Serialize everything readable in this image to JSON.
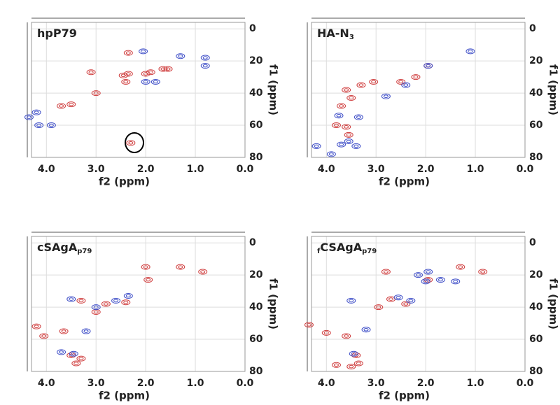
{
  "chart_data": [
    {
      "type": "scatter",
      "title": "hpP79",
      "x_label": "f2 (ppm)",
      "y_label": "f1 (ppm)",
      "xlim": [
        4.3,
        0
      ],
      "ylim": [
        80,
        -4
      ],
      "xticks": [
        {
          "value": 4,
          "label": "4.0"
        },
        {
          "value": 3,
          "label": "3.0"
        },
        {
          "value": 2,
          "label": "2.0"
        },
        {
          "value": 1,
          "label": "1.0"
        },
        {
          "value": 0,
          "label": "0.0"
        }
      ],
      "yticks": [
        0,
        20,
        40,
        60,
        80
      ],
      "grid": true,
      "series": [
        {
          "color": "#d04040",
          "x": [
            2.35,
            3.1,
            2.35,
            2.45,
            2.4,
            2.0,
            1.9,
            1.65,
            1.55,
            3.0,
            3.5,
            3.7,
            2.3
          ],
          "values": [
            15,
            27,
            28,
            29,
            33,
            28,
            27,
            25,
            25,
            40,
            47,
            48,
            71
          ]
        },
        {
          "color": "#4050c8",
          "x": [
            2.05,
            1.3,
            0.8,
            0.8,
            2.0,
            1.8,
            4.2,
            4.35,
            4.15,
            3.9
          ],
          "values": [
            14,
            17,
            18,
            23,
            33,
            33,
            52,
            55,
            60,
            60
          ]
        }
      ]
    },
    {
      "type": "scatter",
      "title": "HA-N",
      "title_sub": "3",
      "x_label": "f2 (ppm)",
      "y_label": "f1 (ppm)",
      "xlim": [
        4.3,
        0
      ],
      "ylim": [
        80,
        -4
      ],
      "xticks": [
        {
          "value": 4,
          "label": "4.0"
        },
        {
          "value": 3,
          "label": "3.0"
        },
        {
          "value": 2,
          "label": "2.0"
        },
        {
          "value": 1,
          "label": "1.0"
        },
        {
          "value": 0,
          "label": "0.0"
        }
      ],
      "yticks": [
        0,
        20,
        40,
        60,
        80
      ],
      "grid": true,
      "series": [
        {
          "color": "#d04040",
          "x": [
            1.95,
            2.2,
            2.5,
            3.05,
            3.3,
            3.6,
            3.5,
            3.7,
            3.6,
            3.55,
            3.8
          ],
          "values": [
            23,
            30,
            33,
            33,
            35,
            38,
            43,
            48,
            61,
            66,
            60
          ]
        },
        {
          "color": "#4050c8",
          "x": [
            1.1,
            1.95,
            2.8,
            2.4,
            3.75,
            3.35,
            3.55,
            3.7,
            3.4,
            3.9,
            4.2
          ],
          "values": [
            14,
            23,
            42,
            35,
            54,
            55,
            70,
            72,
            73,
            78,
            73
          ]
        }
      ]
    },
    {
      "type": "scatter",
      "title": "cSAgA",
      "title_sub": "p79",
      "x_label": "f2 (ppm)",
      "y_label": "f1 (ppm)",
      "xlim": [
        4.3,
        0
      ],
      "ylim": [
        80,
        -4
      ],
      "xticks": [
        {
          "value": 4,
          "label": "4.0"
        },
        {
          "value": 3,
          "label": "3.0"
        },
        {
          "value": 2,
          "label": "2.0"
        },
        {
          "value": 1,
          "label": "1.0"
        },
        {
          "value": 0,
          "label": "0.0"
        }
      ],
      "yticks": [
        0,
        20,
        40,
        60,
        80
      ],
      "grid": true,
      "series": [
        {
          "color": "#d04040",
          "x": [
            2.0,
            1.3,
            0.85,
            1.95,
            2.4,
            2.8,
            3.0,
            3.3,
            4.2,
            4.05,
            3.65,
            3.5,
            3.3,
            3.4
          ],
          "values": [
            15,
            15,
            18,
            23,
            37,
            38,
            43,
            36,
            52,
            58,
            55,
            70,
            72,
            75
          ]
        },
        {
          "color": "#4050c8",
          "x": [
            2.35,
            2.6,
            3.5,
            3.0,
            3.2,
            3.7,
            3.45
          ],
          "values": [
            33,
            36,
            35,
            40,
            55,
            68,
            69
          ]
        }
      ]
    },
    {
      "type": "scatter",
      "title_pre": "f",
      "title": "CSAgA",
      "title_sub": "p79",
      "x_label": "f2 (ppm)",
      "y_label": "f1 (ppm)",
      "xlim": [
        4.3,
        0
      ],
      "ylim": [
        80,
        -4
      ],
      "xticks": [
        {
          "value": 4,
          "label": "4.0"
        },
        {
          "value": 3,
          "label": "3.0"
        },
        {
          "value": 2,
          "label": "2.0"
        },
        {
          "value": 1,
          "label": "1.0"
        },
        {
          "value": 0,
          "label": "0.0"
        }
      ],
      "yticks": [
        0,
        20,
        40,
        60,
        80
      ],
      "grid": true,
      "series": [
        {
          "color": "#d04040",
          "x": [
            1.3,
            0.85,
            2.8,
            1.95,
            2.4,
            2.7,
            2.95,
            4.35,
            4.0,
            3.6,
            3.4,
            3.35,
            3.5,
            3.8
          ],
          "values": [
            15,
            18,
            18,
            23,
            38,
            35,
            40,
            51,
            56,
            58,
            70,
            75,
            77,
            76
          ]
        },
        {
          "color": "#4050c8",
          "x": [
            1.95,
            2.15,
            2.0,
            1.7,
            1.4,
            2.55,
            2.3,
            3.5,
            3.2,
            3.45
          ],
          "values": [
            18,
            20,
            24,
            23,
            24,
            34,
            36,
            36,
            54,
            69
          ]
        }
      ]
    }
  ]
}
